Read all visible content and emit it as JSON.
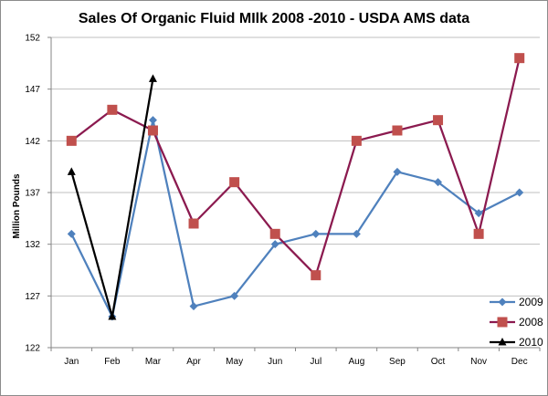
{
  "chart_data": {
    "type": "line",
    "title": "Sales Of Organic Fluid MIlk 2008  -2010  - USDA AMS data",
    "xlabel": "",
    "ylabel": "Million Pounds",
    "categories": [
      "Jan",
      "Feb",
      "Mar",
      "Apr",
      "May",
      "Jun",
      "Jul",
      "Aug",
      "Sep",
      "Oct",
      "Nov",
      "Dec"
    ],
    "ylim": [
      122,
      152
    ],
    "yticks": [
      122,
      127,
      132,
      137,
      142,
      147,
      152
    ],
    "grid": true,
    "legend_position": "bottom-right",
    "series": [
      {
        "name": "2009",
        "color": "#4f81bd",
        "marker": "diamond",
        "values": [
          133,
          125,
          144,
          126,
          127,
          132,
          133,
          133,
          139,
          138,
          135,
          137
        ]
      },
      {
        "name": "2008",
        "color": "#8b1a4f",
        "marker_color": "#c0504d",
        "marker": "square",
        "values": [
          142,
          145,
          143,
          134,
          138,
          133,
          129,
          142,
          143,
          144,
          133,
          150
        ]
      },
      {
        "name": "2010",
        "color": "#000000",
        "marker": "triangle",
        "values": [
          139,
          125,
          148,
          null,
          null,
          null,
          null,
          null,
          null,
          null,
          null,
          null
        ]
      }
    ]
  }
}
